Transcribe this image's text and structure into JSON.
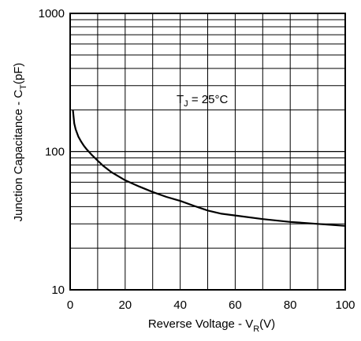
{
  "chart_data": {
    "type": "line",
    "title": "",
    "xlabel": {
      "main": "Reverse Voltage - V",
      "sub": "R",
      "unit": "(V)"
    },
    "ylabel": {
      "main": "Junction Capacitance - C",
      "sub": "T",
      "unit": "(pF)"
    },
    "xlim": [
      0,
      100
    ],
    "ylim": [
      10,
      1000
    ],
    "yscale": "log",
    "grid": true,
    "x_ticks": [
      "0",
      "20",
      "40",
      "60",
      "80",
      "100"
    ],
    "y_ticks": [
      "10",
      "100",
      "1000"
    ],
    "annotation": {
      "main": "T",
      "sub": "J",
      "rest": " = 25°C"
    },
    "series": [
      {
        "x": [
          1,
          1.5,
          2,
          3,
          4,
          5,
          6,
          8,
          10,
          12,
          15,
          20,
          25,
          30,
          35,
          40,
          45,
          50,
          55,
          60,
          70,
          80,
          90,
          100
        ],
        "y": [
          200,
          160,
          145,
          128,
          118,
          110,
          104,
          94,
          86,
          79,
          71,
          62,
          56,
          51,
          47,
          44,
          40.5,
          37.5,
          35.5,
          34.5,
          32.5,
          31,
          30,
          29
        ]
      }
    ],
    "colors": {
      "line": "#000000",
      "grid": "#000000",
      "background": "#ffffff"
    }
  }
}
